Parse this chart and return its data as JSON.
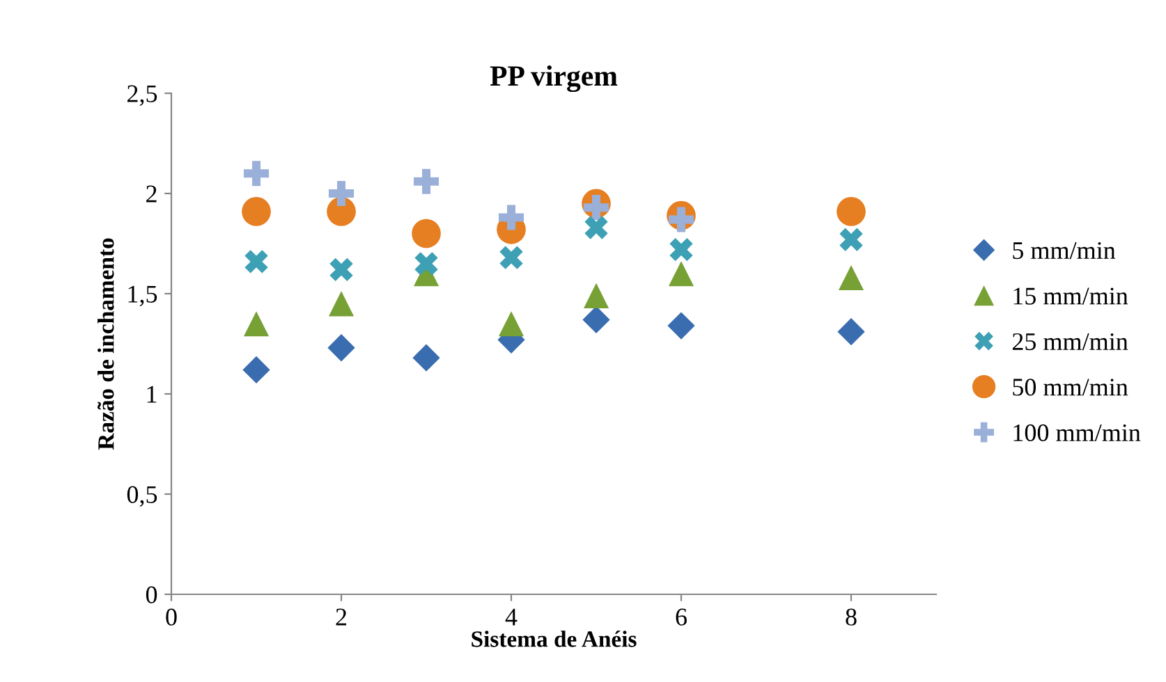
{
  "chart_data": {
    "type": "scatter",
    "title": "PP virgem",
    "xlabel": "Sistema de Anéis",
    "ylabel": "Razão de inchamento",
    "x": [
      1,
      2,
      3,
      4,
      5,
      6,
      8
    ],
    "series": [
      {
        "name": "5 mm/min",
        "color": "#3a6cb0",
        "marker": "diamond",
        "values": [
          1.12,
          1.23,
          1.18,
          1.27,
          1.37,
          1.34,
          1.31
        ]
      },
      {
        "name": "15 mm/min",
        "color": "#77a035",
        "marker": "triangle",
        "values": [
          1.35,
          1.45,
          1.6,
          1.35,
          1.49,
          1.6,
          1.58
        ]
      },
      {
        "name": "25 mm/min",
        "color": "#3da0b5",
        "marker": "cross",
        "values": [
          1.66,
          1.62,
          1.65,
          1.68,
          1.83,
          1.72,
          1.77
        ]
      },
      {
        "name": "50 mm/min",
        "color": "#e67e22",
        "marker": "circle",
        "values": [
          1.91,
          1.91,
          1.8,
          1.82,
          1.95,
          1.89,
          1.91
        ]
      },
      {
        "name": "100 mm/min",
        "color": "#9bb0d8",
        "marker": "cross",
        "values": [
          2.1,
          2.0,
          2.06,
          1.88,
          1.93,
          1.87,
          null
        ]
      }
    ],
    "xlim": [
      0,
      9
    ],
    "xticks": [
      0,
      2,
      4,
      6,
      8
    ],
    "ylim": [
      0,
      2.5
    ],
    "yticks": [
      {
        "value": 0,
        "label": "0"
      },
      {
        "value": 0.5,
        "label": "0,5"
      },
      {
        "value": 1,
        "label": "1"
      },
      {
        "value": 1.5,
        "label": "1,5"
      },
      {
        "value": 2,
        "label": "2"
      },
      {
        "value": 2.5,
        "label": "2,5"
      }
    ],
    "grid": false,
    "legend": "right"
  }
}
